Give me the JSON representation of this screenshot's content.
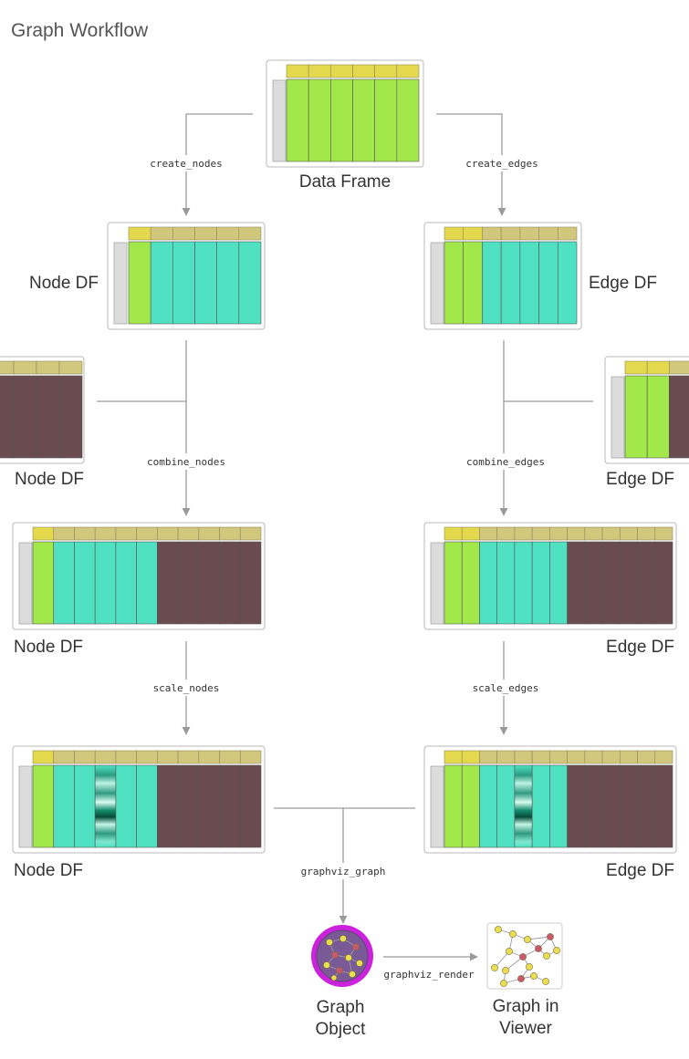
{
  "title": "Graph Workflow",
  "colors": {
    "header_yellow": "#e4d94c",
    "header_olive": "#d1c77d",
    "green": "#a2e84a",
    "teal": "#4fe1c1",
    "brown": "#6a4b4f",
    "index_gray": "#dcdcdc",
    "connector": "#9a9a9a",
    "graph_ring": "#cc22dd",
    "graph_fill": "#7a5a96"
  },
  "tables": {
    "data_frame": {
      "label": "Data Frame"
    },
    "node_df_1": {
      "label": "Node DF"
    },
    "edge_df_1": {
      "label": "Edge DF"
    },
    "node_df_extra": {
      "label": "Node DF"
    },
    "edge_df_extra": {
      "label": "Edge DF"
    },
    "node_df_2": {
      "label": "Node DF"
    },
    "edge_df_2": {
      "label": "Edge DF"
    },
    "node_df_3": {
      "label": "Node DF"
    },
    "edge_df_3": {
      "label": "Edge DF"
    }
  },
  "functions": {
    "create_nodes": "create_nodes",
    "create_edges": "create_edges",
    "combine_nodes": "combine_nodes",
    "combine_edges": "combine_edges",
    "scale_nodes": "scale_nodes",
    "scale_edges": "scale_edges",
    "graphviz_graph": "graphviz_graph",
    "graphviz_render": "graphviz_render"
  },
  "graph_object": {
    "label_line1": "Graph",
    "label_line2": "Object"
  },
  "graph_viewer": {
    "label_line1": "Graph in",
    "label_line2": "Viewer"
  }
}
